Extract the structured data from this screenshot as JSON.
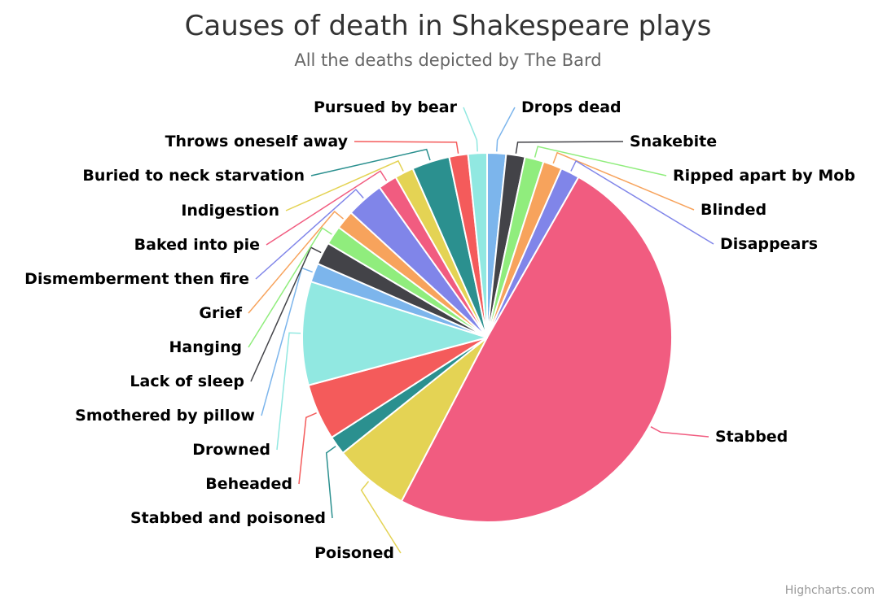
{
  "chart_data": {
    "type": "pie",
    "title": "Causes of death in Shakespeare plays",
    "subtitle": "All the deaths depicted by The Bard",
    "series": [
      {
        "name": "Stabbed",
        "value": 30,
        "color": "#f15c80"
      },
      {
        "name": "Poisoned",
        "value": 4,
        "color": "#e4d354"
      },
      {
        "name": "Stabbed and poisoned",
        "value": 1,
        "color": "#2b908f"
      },
      {
        "name": "Beheaded",
        "value": 3,
        "color": "#f45b5b"
      },
      {
        "name": "Drowned",
        "value": 5.5,
        "color": "#91e8e1"
      },
      {
        "name": "Smothered by pillow",
        "value": 1,
        "color": "#7cb5ec"
      },
      {
        "name": "Lack of sleep",
        "value": 1.2,
        "color": "#434348"
      },
      {
        "name": "Hanging",
        "value": 1,
        "color": "#90ed7d"
      },
      {
        "name": "Grief",
        "value": 1,
        "color": "#f7a35c"
      },
      {
        "name": "Dismemberment then fire",
        "value": 2,
        "color": "#8085e9"
      },
      {
        "name": "Baked into pie",
        "value": 1,
        "color": "#f15c80"
      },
      {
        "name": "Indigestion",
        "value": 1,
        "color": "#e4d354"
      },
      {
        "name": "Buried to neck starvation",
        "value": 2,
        "color": "#2b908f"
      },
      {
        "name": "Throws oneself away",
        "value": 1,
        "color": "#f45b5b"
      },
      {
        "name": "Pursued by bear",
        "value": 1,
        "color": "#91e8e1"
      },
      {
        "name": "Drops dead",
        "value": 1,
        "color": "#7cb5ec"
      },
      {
        "name": "Snakebite",
        "value": 1,
        "color": "#434348"
      },
      {
        "name": "Ripped apart by Mob",
        "value": 1,
        "color": "#90ed7d"
      },
      {
        "name": "Blinded",
        "value": 1,
        "color": "#f7a35c"
      },
      {
        "name": "Disappears",
        "value": 1,
        "color": "#8085e9"
      }
    ]
  },
  "credits": "Highcharts.com"
}
